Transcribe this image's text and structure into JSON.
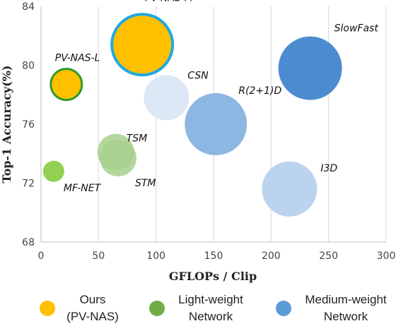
{
  "chart_data": {
    "type": "scatter",
    "xlabel": "GFLOPs / Clip",
    "ylabel": "Top-1 Accuracy(%)",
    "xlim": [
      0,
      300
    ],
    "ylim": [
      68,
      84
    ],
    "xticks": [
      "0",
      "50",
      "100",
      "150",
      "200",
      "250",
      "300"
    ],
    "yticks": [
      "68",
      "72",
      "76",
      "80",
      "84"
    ],
    "grid": "vertical",
    "legend_position": "bottom",
    "series": [
      {
        "name": "Ours (PV-NAS)",
        "key": "ours",
        "color": "#FFC000",
        "points": [
          {
            "label": "PV-NAS-M",
            "x": 88,
            "y": 81.4
          },
          {
            "label": "PV-NAS-L",
            "x": 22,
            "y": 78.7
          }
        ]
      },
      {
        "name": "Light-weight Network",
        "key": "light",
        "color": "#70AD47",
        "points": [
          {
            "label": "TSM",
            "x": 65,
            "y": 74.1
          },
          {
            "label": "STM",
            "x": 67,
            "y": 73.7
          },
          {
            "label": "MF-NET",
            "x": 11,
            "y": 72.8
          }
        ]
      },
      {
        "name": "Medium-weight Network",
        "key": "medium",
        "color": "#5B9BD5",
        "points": [
          {
            "label": "SlowFast",
            "x": 234,
            "y": 79.8
          },
          {
            "label": "CSN",
            "x": 109,
            "y": 77.8
          },
          {
            "label": "R(2+1)D",
            "x": 152,
            "y": 76.0
          },
          {
            "label": "I3D",
            "x": 216,
            "y": 71.6
          }
        ]
      }
    ]
  },
  "legend": {
    "ours": {
      "line1": "Ours",
      "line2": "(PV-NAS)",
      "icon": "circle-yellow"
    },
    "light": {
      "line1": "Light-weight",
      "line2": "Network",
      "icon": "circle-green"
    },
    "medium": {
      "line1": "Medium-weight",
      "line2": "Network",
      "icon": "circle-blue"
    }
  }
}
